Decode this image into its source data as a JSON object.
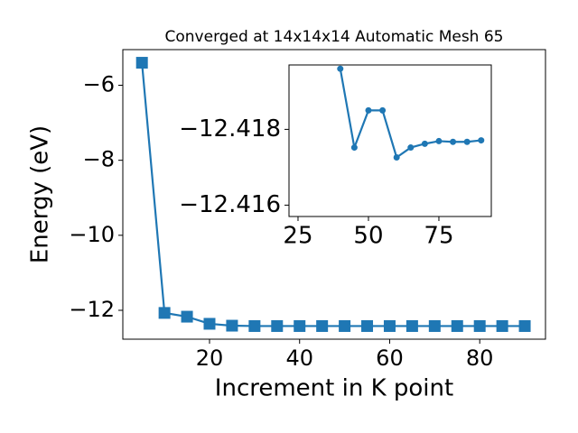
{
  "chart_data": [
    {
      "type": "line",
      "title": "Converged at 14x14x14 Automatic Mesh 65",
      "x_label": "Increment in K point",
      "y_label": "Energy (eV)",
      "x": [
        5,
        10,
        15,
        20,
        25,
        30,
        35,
        40,
        45,
        50,
        55,
        60,
        65,
        70,
        75,
        80,
        85,
        90
      ],
      "values": [
        -5.4,
        -12.07,
        -12.17,
        -12.36,
        -12.41,
        -12.42,
        -12.42,
        -12.42,
        -12.42,
        -12.42,
        -12.42,
        -12.42,
        -12.42,
        -12.42,
        -12.42,
        -12.42,
        -12.42,
        -12.42
      ],
      "color": "#1f77b4",
      "xlim": [
        0.75,
        94.6
      ],
      "xticks": [
        20,
        40,
        60,
        80
      ],
      "ylim": [
        -12.77,
        -5.05
      ],
      "yticks": [
        {
          "value": -12,
          "label": "−12"
        },
        {
          "value": -10,
          "label": "−10"
        },
        {
          "value": -8,
          "label": "−8"
        },
        {
          "value": -6,
          "label": "−6"
        }
      ]
    },
    {
      "type": "line",
      "x": [
        40,
        45,
        50,
        55,
        60,
        65,
        70,
        75,
        80,
        85,
        90
      ],
      "values": [
        -12.4196,
        -12.41752,
        -12.4185,
        -12.4185,
        -12.41726,
        -12.41752,
        -12.41762,
        -12.41769,
        -12.41767,
        -12.41767,
        -12.41771
      ],
      "color": "#1f77b4",
      "xlim": [
        21.8,
        93.6
      ],
      "xticks": [
        25,
        50,
        75
      ],
      "ylim": [
        -12.4157,
        -12.4197
      ],
      "yticks": [
        {
          "value": -12.418,
          "label": "−12.418"
        },
        {
          "value": -12.416,
          "label": "−12.416"
        }
      ]
    }
  ]
}
